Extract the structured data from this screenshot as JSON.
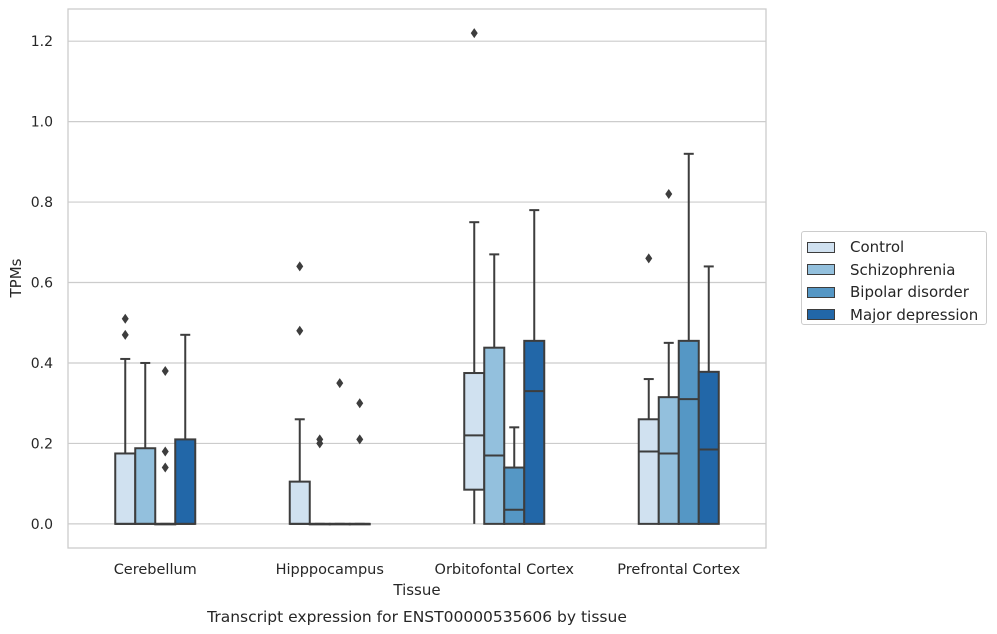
{
  "chart_data": {
    "type": "box",
    "caption": "Transcript expression for ENST00000535606 by tissue",
    "xlabel": "Tissue",
    "ylabel": "TPMs",
    "ylim": [
      -0.06,
      1.28
    ],
    "yticks": [
      0.0,
      0.2,
      0.4,
      0.6,
      0.8,
      1.0,
      1.2
    ],
    "grid": "horizontal",
    "legend_position": "right",
    "categories": [
      "Cerebellum",
      "Hipppocampus",
      "Orbitofontal Cortex",
      "Prefrontal Cortex"
    ],
    "series": [
      {
        "name": "Control",
        "color": "#d0e1f0",
        "boxes": [
          {
            "min": 0.0,
            "q1": 0.0,
            "median": 0.0,
            "q3": 0.175,
            "max": 0.41,
            "outliers": [
              0.47,
              0.51
            ]
          },
          {
            "min": 0.0,
            "q1": 0.0,
            "median": 0.0,
            "q3": 0.105,
            "max": 0.26,
            "outliers": [
              0.48,
              0.64
            ]
          },
          {
            "min": 0.0,
            "q1": 0.085,
            "median": 0.22,
            "q3": 0.375,
            "max": 0.75,
            "outliers": [
              1.22
            ]
          },
          {
            "min": 0.0,
            "q1": 0.0,
            "median": 0.18,
            "q3": 0.26,
            "max": 0.36,
            "outliers": [
              0.66
            ]
          }
        ]
      },
      {
        "name": "Schizophrenia",
        "color": "#93c0dd",
        "boxes": [
          {
            "min": 0.0,
            "q1": 0.0,
            "median": 0.0,
            "q3": 0.188,
            "max": 0.4,
            "outliers": []
          },
          {
            "min": 0.0,
            "q1": 0.0,
            "median": 0.0,
            "q3": 0.0,
            "max": 0.0,
            "outliers": [
              0.2,
              0.21
            ]
          },
          {
            "min": 0.0,
            "q1": 0.0,
            "median": 0.17,
            "q3": 0.438,
            "max": 0.67,
            "outliers": []
          },
          {
            "min": 0.0,
            "q1": 0.0,
            "median": 0.175,
            "q3": 0.315,
            "max": 0.45,
            "outliers": [
              0.82
            ]
          }
        ]
      },
      {
        "name": "Bipolar disorder",
        "color": "#5597c5",
        "boxes": [
          {
            "min": 0.0,
            "q1": 0.0,
            "median": 0.0,
            "q3": 0.0,
            "max": 0.0,
            "outliers": [
              0.14,
              0.18,
              0.38
            ]
          },
          {
            "min": 0.0,
            "q1": 0.0,
            "median": 0.0,
            "q3": 0.0,
            "max": 0.0,
            "outliers": [
              0.35
            ]
          },
          {
            "min": 0.0,
            "q1": 0.0,
            "median": 0.035,
            "q3": 0.14,
            "max": 0.24,
            "outliers": []
          },
          {
            "min": 0.0,
            "q1": 0.0,
            "median": 0.31,
            "q3": 0.455,
            "max": 0.92,
            "outliers": []
          }
        ]
      },
      {
        "name": "Major depression",
        "color": "#2267a8",
        "boxes": [
          {
            "min": 0.0,
            "q1": 0.0,
            "median": 0.0,
            "q3": 0.21,
            "max": 0.47,
            "outliers": []
          },
          {
            "min": 0.0,
            "q1": 0.0,
            "median": 0.0,
            "q3": 0.0,
            "max": 0.0,
            "outliers": [
              0.21,
              0.3
            ]
          },
          {
            "min": 0.0,
            "q1": 0.0,
            "median": 0.33,
            "q3": 0.455,
            "max": 0.78,
            "outliers": []
          },
          {
            "min": 0.0,
            "q1": 0.0,
            "median": 0.185,
            "q3": 0.378,
            "max": 0.64,
            "outliers": []
          }
        ]
      }
    ]
  },
  "legend": {
    "items": [
      {
        "label": "Control",
        "color": "#d0e1f0"
      },
      {
        "label": "Schizophrenia",
        "color": "#93c0dd"
      },
      {
        "label": "Bipolar disorder",
        "color": "#5597c5"
      },
      {
        "label": "Major depression",
        "color": "#2267a8"
      }
    ]
  }
}
